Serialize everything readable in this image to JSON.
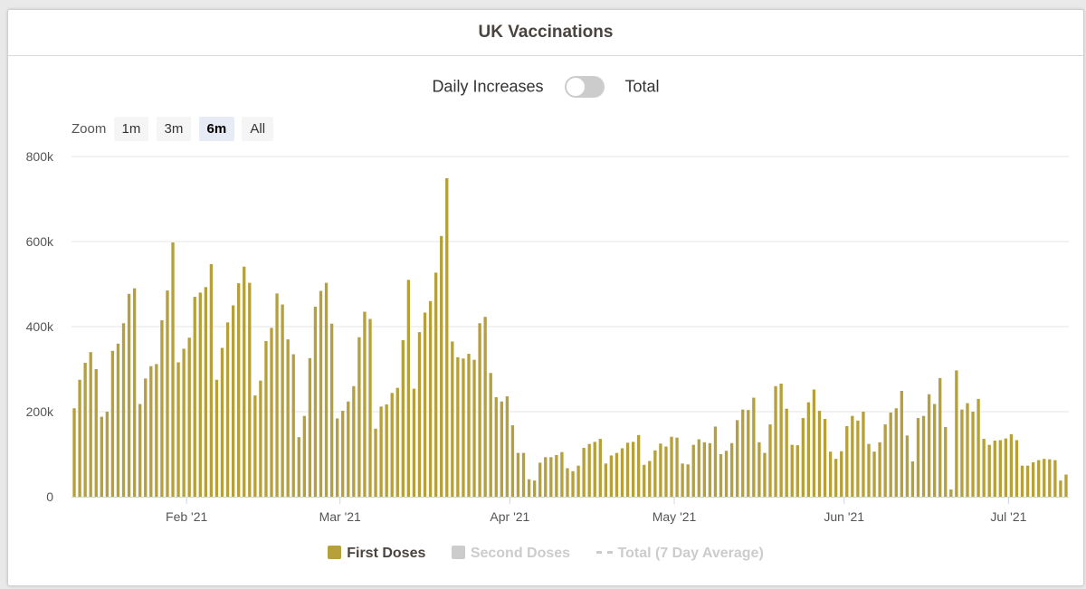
{
  "header": {
    "title": "UK Vaccinations"
  },
  "toggle": {
    "left_label": "Daily Increases",
    "right_label": "Total"
  },
  "zoom": {
    "label": "Zoom",
    "buttons": [
      "1m",
      "3m",
      "6m",
      "All"
    ],
    "active": "6m"
  },
  "chart_data": {
    "type": "bar",
    "x_start": "2021-01-11",
    "y_ticks": [
      0,
      200000,
      400000,
      600000,
      800000
    ],
    "y_tick_labels": [
      "0",
      "200k",
      "400k",
      "600k",
      "800k"
    ],
    "ylim": [
      0,
      800000
    ],
    "x_ticks": [
      {
        "date": "2021-02-01",
        "label": "Feb '21"
      },
      {
        "date": "2021-03-01",
        "label": "Mar '21"
      },
      {
        "date": "2021-04-01",
        "label": "Apr '21"
      },
      {
        "date": "2021-05-01",
        "label": "May '21"
      },
      {
        "date": "2021-06-01",
        "label": "Jun '21"
      },
      {
        "date": "2021-07-01",
        "label": "Jul '21"
      }
    ],
    "grid": true,
    "legend_position": "bottom",
    "series": [
      {
        "name": "First Doses",
        "color": "#b5a03a",
        "visible": true,
        "values": [
          208000,
          275000,
          315000,
          340000,
          300000,
          188000,
          200000,
          343000,
          360000,
          408000,
          477000,
          490000,
          218000,
          278000,
          307000,
          312000,
          415000,
          485000,
          598000,
          316000,
          348000,
          374000,
          470000,
          480000,
          493000,
          547000,
          275000,
          350000,
          410000,
          450000,
          502000,
          541000,
          503000,
          238000,
          273000,
          366000,
          397000,
          478000,
          452000,
          370000,
          335000,
          140000,
          190000,
          326000,
          447000,
          484000,
          503000,
          407000,
          184000,
          202000,
          224000,
          260000,
          375000,
          435000,
          418000,
          160000,
          212000,
          217000,
          244000,
          256000,
          368000,
          510000,
          254000,
          387000,
          433000,
          460000,
          527000,
          613000,
          749000,
          365000,
          328000,
          325000,
          336000,
          322000,
          408000,
          423000,
          291000,
          234000,
          224000,
          236000,
          168000,
          103000,
          103000,
          41000,
          38000,
          80000,
          93000,
          93000,
          98000,
          105000,
          67000,
          60000,
          73000,
          115000,
          124000,
          129000,
          136000,
          78000,
          97000,
          103000,
          114000,
          127000,
          129000,
          145000,
          75000,
          84000,
          109000,
          125000,
          118000,
          141000,
          139000,
          78000,
          76000,
          122000,
          135000,
          128000,
          126000,
          165000,
          100000,
          108000,
          126000,
          180000,
          205000,
          204000,
          233000,
          128000,
          103000,
          170000,
          260000,
          266000,
          207000,
          122000,
          121000,
          185000,
          222000,
          252000,
          202000,
          183000,
          106000,
          89000,
          107000,
          166000,
          190000,
          179000,
          200000,
          124000,
          106000,
          128000,
          170000,
          198000,
          208000,
          249000,
          144000,
          83000,
          185000,
          190000,
          241000,
          218000,
          279000,
          164000,
          17000,
          297000,
          205000,
          220000,
          200000,
          230000,
          136000,
          122000,
          132000,
          133000,
          137000,
          147000,
          133000,
          73000,
          73000,
          81000,
          86000,
          89000,
          88000,
          86000,
          38000,
          52000
        ]
      },
      {
        "name": "Second Doses",
        "color": "#cccccc",
        "visible": false
      },
      {
        "name": "Total (7 Day Average)",
        "color": "#cccccc",
        "visible": false,
        "style": "dashed-line"
      }
    ]
  }
}
